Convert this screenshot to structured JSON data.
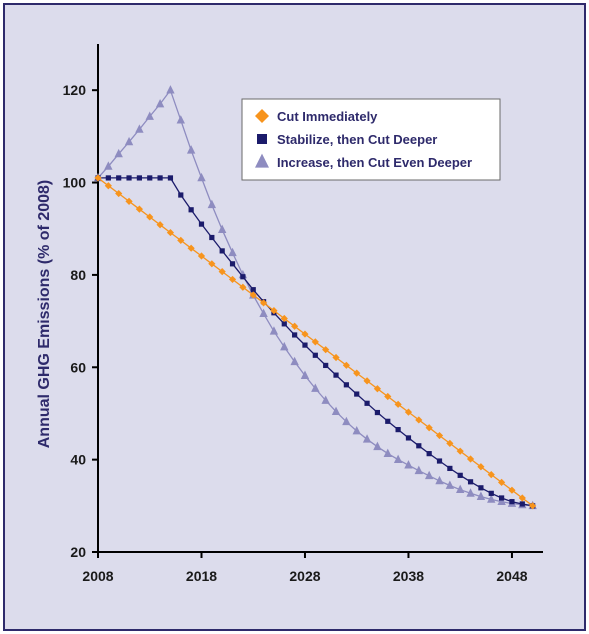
{
  "chart_data": {
    "type": "line",
    "title": "",
    "xlabel": "",
    "ylabel": "Annual GHG Emissions (% of 2008)",
    "xlim": [
      2008,
      2051
    ],
    "ylim": [
      20,
      130
    ],
    "xticks": [
      2008,
      2018,
      2028,
      2038,
      2048
    ],
    "yticks": [
      20,
      40,
      60,
      80,
      100,
      120
    ],
    "grid": false,
    "legend_position": "top-right",
    "series": [
      {
        "name": "Cut Immediately",
        "color": "#f7941d",
        "marker": "diamond",
        "x": [
          2008,
          2050
        ],
        "y": [
          101,
          30
        ],
        "shape": "linear"
      },
      {
        "name": "Stabilize, then Cut Deeper",
        "color": "#1b1b6b",
        "marker": "square",
        "x": [
          2008,
          2009,
          2010,
          2011,
          2012,
          2013,
          2014,
          2015,
          2016,
          2017,
          2018,
          2019,
          2020,
          2021,
          2022,
          2023,
          2024,
          2025,
          2026,
          2027,
          2028,
          2029,
          2030,
          2031,
          2032,
          2033,
          2034,
          2035,
          2036,
          2037,
          2038,
          2039,
          2040,
          2041,
          2042,
          2043,
          2044,
          2045,
          2046,
          2047,
          2048,
          2049,
          2050
        ],
        "y": [
          101,
          101,
          101,
          101,
          101,
          101,
          101,
          101,
          97.3,
          94.1,
          91.0,
          88.1,
          85.2,
          82.4,
          79.6,
          76.8,
          74.2,
          71.8,
          69.4,
          67.0,
          64.8,
          62.6,
          60.4,
          58.3,
          56.2,
          54.2,
          52.2,
          50.2,
          48.3,
          46.5,
          44.7,
          43.0,
          41.3,
          39.7,
          38.1,
          36.6,
          35.2,
          33.9,
          32.7,
          31.7,
          30.9,
          30.4,
          30.0
        ]
      },
      {
        "name": "Increase, then Cut Even Deeper",
        "color": "#8e8cc0",
        "marker": "triangle",
        "x": [
          2008,
          2009,
          2010,
          2011,
          2012,
          2013,
          2014,
          2015,
          2016,
          2017,
          2018,
          2019,
          2020,
          2021,
          2022,
          2023,
          2024,
          2025,
          2026,
          2027,
          2028,
          2029,
          2030,
          2031,
          2032,
          2033,
          2034,
          2035,
          2036,
          2037,
          2038,
          2039,
          2040,
          2041,
          2042,
          2043,
          2044,
          2045,
          2046,
          2047,
          2048,
          2049,
          2050
        ],
        "y": [
          101,
          103.5,
          106.2,
          108.8,
          111.5,
          114.3,
          117.0,
          120.0,
          113.5,
          107.0,
          101.0,
          95.2,
          89.8,
          84.8,
          80.0,
          75.6,
          71.6,
          67.8,
          64.4,
          61.2,
          58.2,
          55.4,
          52.8,
          50.4,
          48.2,
          46.2,
          44.4,
          42.8,
          41.3,
          40.0,
          38.8,
          37.6,
          36.5,
          35.4,
          34.4,
          33.5,
          32.7,
          32.0,
          31.4,
          30.9,
          30.5,
          30.2,
          30.0
        ]
      }
    ]
  }
}
